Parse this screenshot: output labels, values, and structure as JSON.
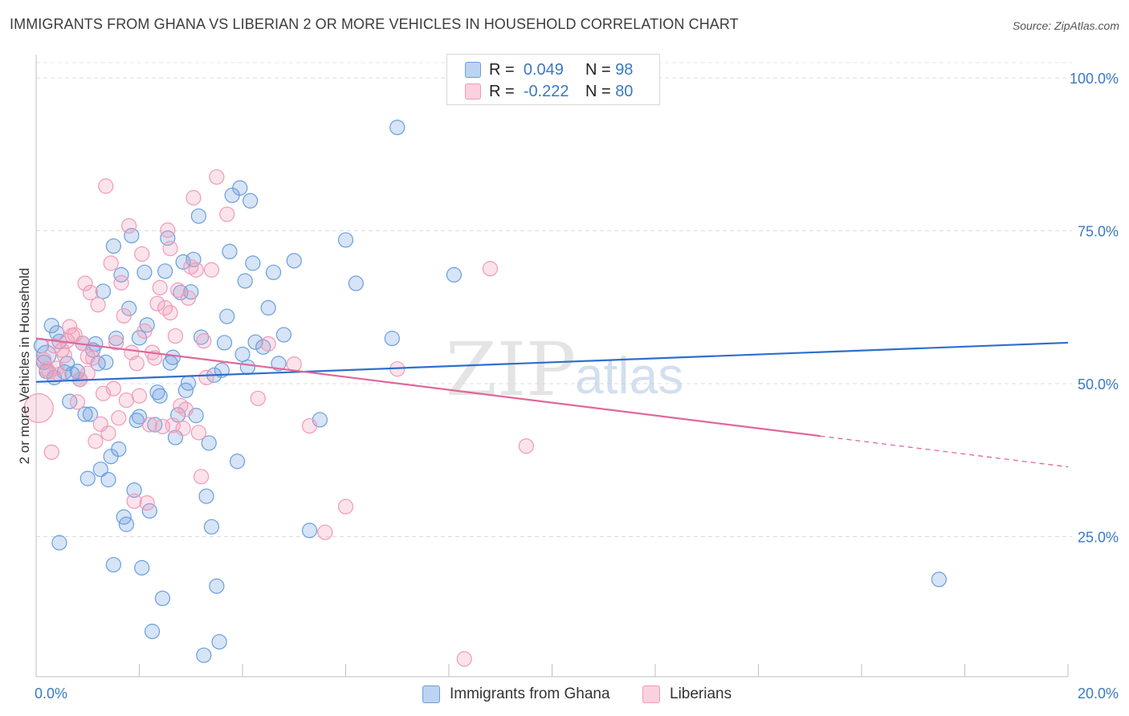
{
  "title": "IMMIGRANTS FROM GHANA VS LIBERIAN 2 OR MORE VEHICLES IN HOUSEHOLD CORRELATION CHART",
  "source": "Source: ZipAtlas.com",
  "watermark": {
    "zip": "ZIP",
    "atlas": "atlas"
  },
  "legend": {
    "r_label": "R =",
    "n_label": "N =",
    "series": [
      {
        "r": "0.049",
        "n": "98"
      },
      {
        "r": "-0.222",
        "n": "80"
      }
    ]
  },
  "chart_data": {
    "type": "scatter",
    "title": "IMMIGRANTS FROM GHANA VS LIBERIAN 2 OR MORE VEHICLES IN HOUSEHOLD CORRELATION CHART",
    "xlabel": "",
    "ylabel": "2 or more Vehicles in Household",
    "xlim": [
      0,
      20
    ],
    "ylim": [
      0,
      103
    ],
    "x_ticks": [
      {
        "value": 0,
        "label": "0.0%"
      },
      {
        "value": 20,
        "label": "20.0%"
      }
    ],
    "y_ticks": [
      {
        "value": 25,
        "label": "25.0%"
      },
      {
        "value": 50,
        "label": "50.0%"
      },
      {
        "value": 75,
        "label": "75.0%"
      },
      {
        "value": 100,
        "label": "100.0%"
      }
    ],
    "grid": "horizontal dashed",
    "legend_position": "bottom",
    "colors": {
      "ghana": "#6a9ede",
      "liberian": "#f09ab8",
      "ghana_line": "#2e6fcc",
      "liberian_line": "#e2669a"
    },
    "series": [
      {
        "name": "Immigrants from Ghana",
        "r": 0.049,
        "n": 98,
        "trend": {
          "x": [
            0,
            20
          ],
          "y": [
            50.3,
            56.7
          ],
          "solid_until": 20
        },
        "points": [
          [
            0.1,
            56.2
          ],
          [
            0.15,
            53.5
          ],
          [
            0.2,
            54.7
          ],
          [
            0.3,
            59.5
          ],
          [
            0.35,
            51
          ],
          [
            0.4,
            58.3
          ],
          [
            0.45,
            56.9
          ],
          [
            0.55,
            51.9
          ],
          [
            0.6,
            53.3
          ],
          [
            0.65,
            47.1
          ],
          [
            0.7,
            51.6
          ],
          [
            0.8,
            52
          ],
          [
            0.85,
            50.7
          ],
          [
            0.9,
            56.6
          ],
          [
            0.95,
            45
          ],
          [
            1.0,
            34.5
          ],
          [
            1.05,
            45
          ],
          [
            1.1,
            55.5
          ],
          [
            1.15,
            56.5
          ],
          [
            1.2,
            53.3
          ],
          [
            1.25,
            36
          ],
          [
            1.3,
            65.1
          ],
          [
            1.35,
            53.5
          ],
          [
            1.4,
            34.3
          ],
          [
            1.45,
            38.1
          ],
          [
            1.5,
            20.4
          ],
          [
            1.55,
            57.4
          ],
          [
            1.6,
            39.3
          ],
          [
            1.65,
            67.8
          ],
          [
            1.7,
            28.2
          ],
          [
            1.75,
            27
          ],
          [
            1.8,
            62.3
          ],
          [
            1.85,
            74.2
          ],
          [
            1.9,
            32.6
          ],
          [
            1.95,
            44
          ],
          [
            2.0,
            57.5
          ],
          [
            2.05,
            19.9
          ],
          [
            2.1,
            68.2
          ],
          [
            2.15,
            59.6
          ],
          [
            2.2,
            29.2
          ],
          [
            2.25,
            9.5
          ],
          [
            2.3,
            43.3
          ],
          [
            2.35,
            48.6
          ],
          [
            2.4,
            48
          ],
          [
            2.45,
            14.9
          ],
          [
            2.5,
            68.4
          ],
          [
            2.55,
            73.8
          ],
          [
            2.6,
            53.4
          ],
          [
            2.65,
            54.3
          ],
          [
            2.7,
            41.2
          ],
          [
            2.75,
            44.9
          ],
          [
            2.8,
            64.9
          ],
          [
            2.85,
            69.9
          ],
          [
            2.9,
            48.9
          ],
          [
            2.95,
            50.1
          ],
          [
            3.0,
            65
          ],
          [
            3.05,
            70.3
          ],
          [
            3.1,
            44.8
          ],
          [
            3.15,
            77.4
          ],
          [
            3.2,
            57.6
          ],
          [
            3.25,
            5.6
          ],
          [
            3.3,
            31.6
          ],
          [
            3.35,
            40.3
          ],
          [
            3.4,
            26.6
          ],
          [
            3.45,
            51.4
          ],
          [
            3.5,
            16.9
          ],
          [
            3.55,
            7.8
          ],
          [
            3.6,
            52.2
          ],
          [
            3.65,
            56.7
          ],
          [
            3.7,
            61
          ],
          [
            3.75,
            71.6
          ],
          [
            3.8,
            80.8
          ],
          [
            3.9,
            37.3
          ],
          [
            4.0,
            54.8
          ],
          [
            4.05,
            66.8
          ],
          [
            4.1,
            52.7
          ],
          [
            4.15,
            79.9
          ],
          [
            4.2,
            69.7
          ],
          [
            4.25,
            56.8
          ],
          [
            4.5,
            62.4
          ],
          [
            4.6,
            68.2
          ],
          [
            4.7,
            53.3
          ],
          [
            4.8,
            58
          ],
          [
            5.0,
            70.1
          ],
          [
            5.3,
            26
          ],
          [
            5.5,
            44.1
          ],
          [
            6.0,
            73.5
          ],
          [
            6.2,
            66.4
          ],
          [
            6.9,
            57.4
          ],
          [
            8.1,
            67.8
          ],
          [
            17.5,
            18
          ],
          [
            7.0,
            91.9
          ],
          [
            3.95,
            82
          ],
          [
            1.5,
            72.5
          ],
          [
            0.2,
            52
          ],
          [
            0.45,
            24
          ],
          [
            4.4,
            56
          ],
          [
            2.0,
            44.6
          ]
        ]
      },
      {
        "name": "Liberians",
        "r": -0.222,
        "n": 80,
        "trend": {
          "x": [
            0,
            20
          ],
          "y": [
            57.4,
            36.4
          ],
          "solid_until": 15.2
        },
        "points": [
          [
            0.05,
            46
          ],
          [
            0.15,
            53.9
          ],
          [
            0.2,
            52.4
          ],
          [
            0.25,
            51.9
          ],
          [
            0.3,
            38.8
          ],
          [
            0.35,
            56.2
          ],
          [
            0.4,
            52.5
          ],
          [
            0.45,
            51.5
          ],
          [
            0.5,
            55.5
          ],
          [
            0.55,
            54.6
          ],
          [
            0.6,
            57
          ],
          [
            0.65,
            59.3
          ],
          [
            0.7,
            57.9
          ],
          [
            0.75,
            58
          ],
          [
            0.8,
            47
          ],
          [
            0.85,
            50.7
          ],
          [
            0.9,
            56.6
          ],
          [
            0.95,
            66.4
          ],
          [
            1.0,
            54.4
          ],
          [
            1.05,
            64.9
          ],
          [
            1.1,
            54.2
          ],
          [
            1.15,
            40.6
          ],
          [
            1.2,
            62.9
          ],
          [
            1.25,
            43.4
          ],
          [
            1.3,
            48.4
          ],
          [
            1.35,
            82.3
          ],
          [
            1.4,
            41.9
          ],
          [
            1.45,
            69.7
          ],
          [
            1.5,
            49.2
          ],
          [
            1.55,
            56.7
          ],
          [
            1.6,
            44.4
          ],
          [
            1.65,
            66.5
          ],
          [
            1.7,
            61.1
          ],
          [
            1.75,
            47.3
          ],
          [
            1.8,
            75.8
          ],
          [
            1.85,
            55.1
          ],
          [
            1.9,
            30.8
          ],
          [
            1.95,
            53.3
          ],
          [
            2.0,
            48
          ],
          [
            2.05,
            71.2
          ],
          [
            2.1,
            58.6
          ],
          [
            2.15,
            30.5
          ],
          [
            2.2,
            43.3
          ],
          [
            2.25,
            55.1
          ],
          [
            2.3,
            54.2
          ],
          [
            2.35,
            63.1
          ],
          [
            2.4,
            65.7
          ],
          [
            2.45,
            43
          ],
          [
            2.5,
            62.4
          ],
          [
            2.55,
            75.1
          ],
          [
            2.6,
            72.1
          ],
          [
            2.65,
            43.2
          ],
          [
            2.7,
            57.8
          ],
          [
            2.75,
            65.3
          ],
          [
            2.8,
            46.4
          ],
          [
            2.85,
            42.7
          ],
          [
            2.9,
            45.8
          ],
          [
            2.95,
            64
          ],
          [
            3.0,
            69.1
          ],
          [
            3.05,
            80.4
          ],
          [
            3.1,
            68.6
          ],
          [
            3.15,
            42
          ],
          [
            3.2,
            34.8
          ],
          [
            3.25,
            57
          ],
          [
            3.3,
            51
          ],
          [
            3.5,
            83.8
          ],
          [
            3.7,
            77.7
          ],
          [
            4.3,
            47.6
          ],
          [
            4.5,
            56.5
          ],
          [
            5.0,
            53.2
          ],
          [
            5.3,
            43.1
          ],
          [
            5.6,
            25.7
          ],
          [
            6.0,
            29.9
          ],
          [
            7.0,
            52.4
          ],
          [
            8.3,
            5
          ],
          [
            8.8,
            68.8
          ],
          [
            9.5,
            39.8
          ],
          [
            1.0,
            51.7
          ],
          [
            3.4,
            68.6
          ],
          [
            2.6,
            61.6
          ]
        ]
      }
    ]
  },
  "bottom_legend": {
    "ghana": "Immigrants from Ghana",
    "liberians": "Liberians"
  }
}
